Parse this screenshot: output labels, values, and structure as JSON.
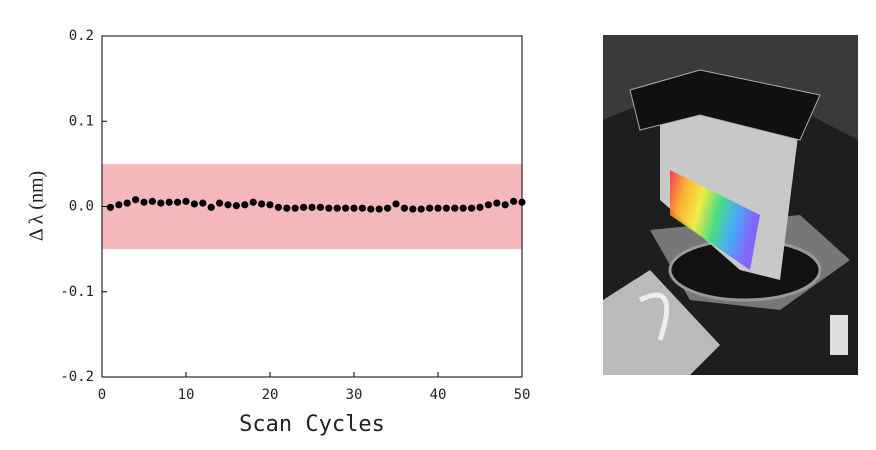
{
  "chart_data": {
    "type": "scatter",
    "xlabel": "Scan Cycles",
    "ylabel": "Δ λ (nm)",
    "x": [
      1,
      2,
      3,
      4,
      5,
      6,
      7,
      8,
      9,
      10,
      11,
      12,
      13,
      14,
      15,
      16,
      17,
      18,
      19,
      20,
      21,
      22,
      23,
      24,
      25,
      26,
      27,
      28,
      29,
      30,
      31,
      32,
      33,
      34,
      35,
      36,
      37,
      38,
      39,
      40,
      41,
      42,
      43,
      44,
      45,
      46,
      47,
      48,
      49,
      50
    ],
    "series": [
      {
        "color": "#000000",
        "values": [
          -0.001,
          0.002,
          0.004,
          0.008,
          0.005,
          0.006,
          0.004,
          0.005,
          0.005,
          0.006,
          0.003,
          0.004,
          -0.001,
          0.004,
          0.002,
          0.001,
          0.002,
          0.005,
          0.003,
          0.002,
          -0.001,
          -0.002,
          -0.002,
          -0.001,
          -0.001,
          -0.001,
          -0.002,
          -0.002,
          -0.002,
          -0.002,
          -0.002,
          -0.003,
          -0.003,
          -0.002,
          0.003,
          -0.002,
          -0.003,
          -0.003,
          -0.002,
          -0.002,
          -0.002,
          -0.002,
          -0.002,
          -0.002,
          -0.001,
          0.002,
          0.004,
          0.002,
          0.006,
          0.005
        ]
      }
    ],
    "band": {
      "range": [
        -0.05,
        0.05
      ],
      "color": "#f4b8bb"
    },
    "xlim": [
      0,
      50
    ],
    "xticks": [
      0,
      10,
      20,
      30,
      40,
      50
    ],
    "ylim": [
      -0.2,
      0.2
    ],
    "yticks": [
      -0.2,
      -0.1,
      {
        "value": 0,
        "label": "0.0"
      },
      0.1,
      0.2
    ]
  }
}
